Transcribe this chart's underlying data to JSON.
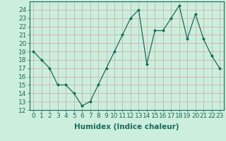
{
  "x": [
    0,
    1,
    2,
    3,
    4,
    5,
    6,
    7,
    8,
    9,
    10,
    11,
    12,
    13,
    14,
    15,
    16,
    17,
    18,
    19,
    20,
    21,
    22,
    23
  ],
  "y": [
    19,
    18,
    17,
    15,
    15,
    14,
    12.5,
    13,
    15,
    17,
    19,
    21,
    23,
    24,
    17.5,
    21.5,
    21.5,
    23,
    24.5,
    20.5,
    23.5,
    20.5,
    18.5,
    17
  ],
  "xlabel": "Humidex (Indice chaleur)",
  "ylim": [
    12,
    25
  ],
  "xlim": [
    -0.5,
    23.5
  ],
  "yticks": [
    12,
    13,
    14,
    15,
    16,
    17,
    18,
    19,
    20,
    21,
    22,
    23,
    24
  ],
  "xticks": [
    0,
    1,
    2,
    3,
    4,
    5,
    6,
    7,
    8,
    9,
    10,
    11,
    12,
    13,
    14,
    15,
    16,
    17,
    18,
    19,
    20,
    21,
    22,
    23
  ],
  "line_color": "#1a6b5a",
  "marker": "D",
  "marker_size": 2,
  "bg_color": "#cceedd",
  "grid_color": "#b0d8c8",
  "xlabel_fontsize": 7.5,
  "tick_fontsize": 6.5
}
